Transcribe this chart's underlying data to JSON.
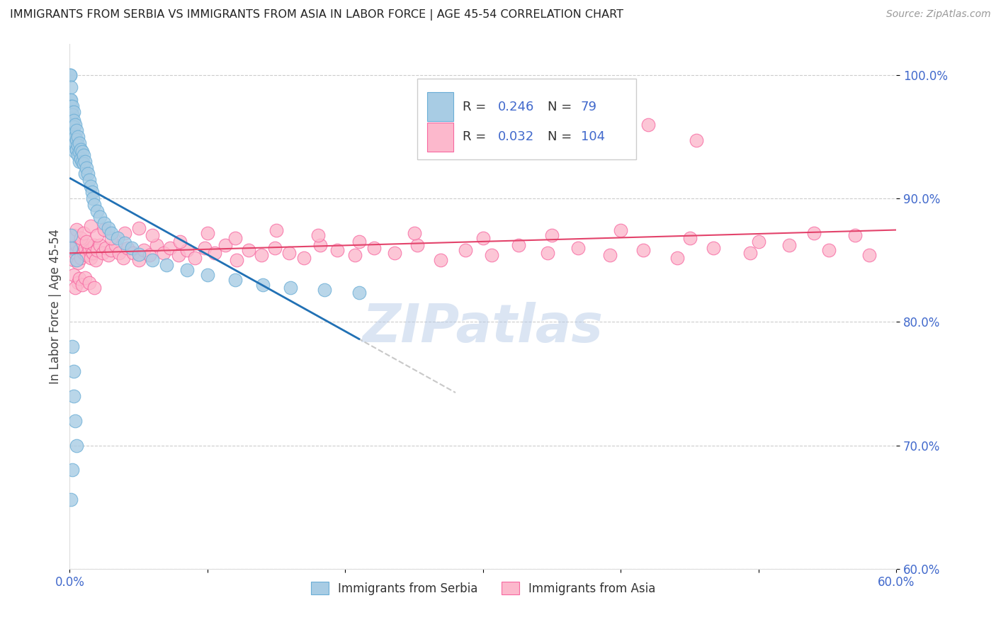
{
  "title": "IMMIGRANTS FROM SERBIA VS IMMIGRANTS FROM ASIA IN LABOR FORCE | AGE 45-54 CORRELATION CHART",
  "source_text": "Source: ZipAtlas.com",
  "ylabel": "In Labor Force | Age 45-54",
  "legend_serbia": "Immigrants from Serbia",
  "legend_asia": "Immigrants from Asia",
  "serbia_R": 0.246,
  "serbia_N": 79,
  "asia_R": 0.032,
  "asia_N": 104,
  "xlim": [
    0.0,
    0.6
  ],
  "ylim": [
    0.6,
    1.025
  ],
  "yticks": [
    0.6,
    0.7,
    0.8,
    0.9,
    1.0
  ],
  "ytick_labels": [
    "60.0%",
    "70.0%",
    "80.0%",
    "90.0%",
    "100.0%"
  ],
  "xticks": [
    0.0,
    0.1,
    0.2,
    0.3,
    0.4,
    0.5,
    0.6
  ],
  "xtick_labels": [
    "0.0%",
    "",
    "",
    "",
    "",
    "",
    "60.0%"
  ],
  "color_serbia": "#a8cce4",
  "color_serbia_edge": "#6baed6",
  "color_serbia_line": "#2171b5",
  "color_asia": "#fcb8cc",
  "color_asia_edge": "#f768a1",
  "color_asia_line": "#e3436b",
  "background_color": "#ffffff",
  "grid_color": "#cccccc",
  "axis_color": "#4169cc",
  "title_color": "#222222",
  "watermark_text": "ZIPatlas",
  "watermark_color": "#b8cce8",
  "legend_box_color": "#f5f5f5",
  "legend_R_color": "#4169cc",
  "legend_N_color": "#4169cc"
}
